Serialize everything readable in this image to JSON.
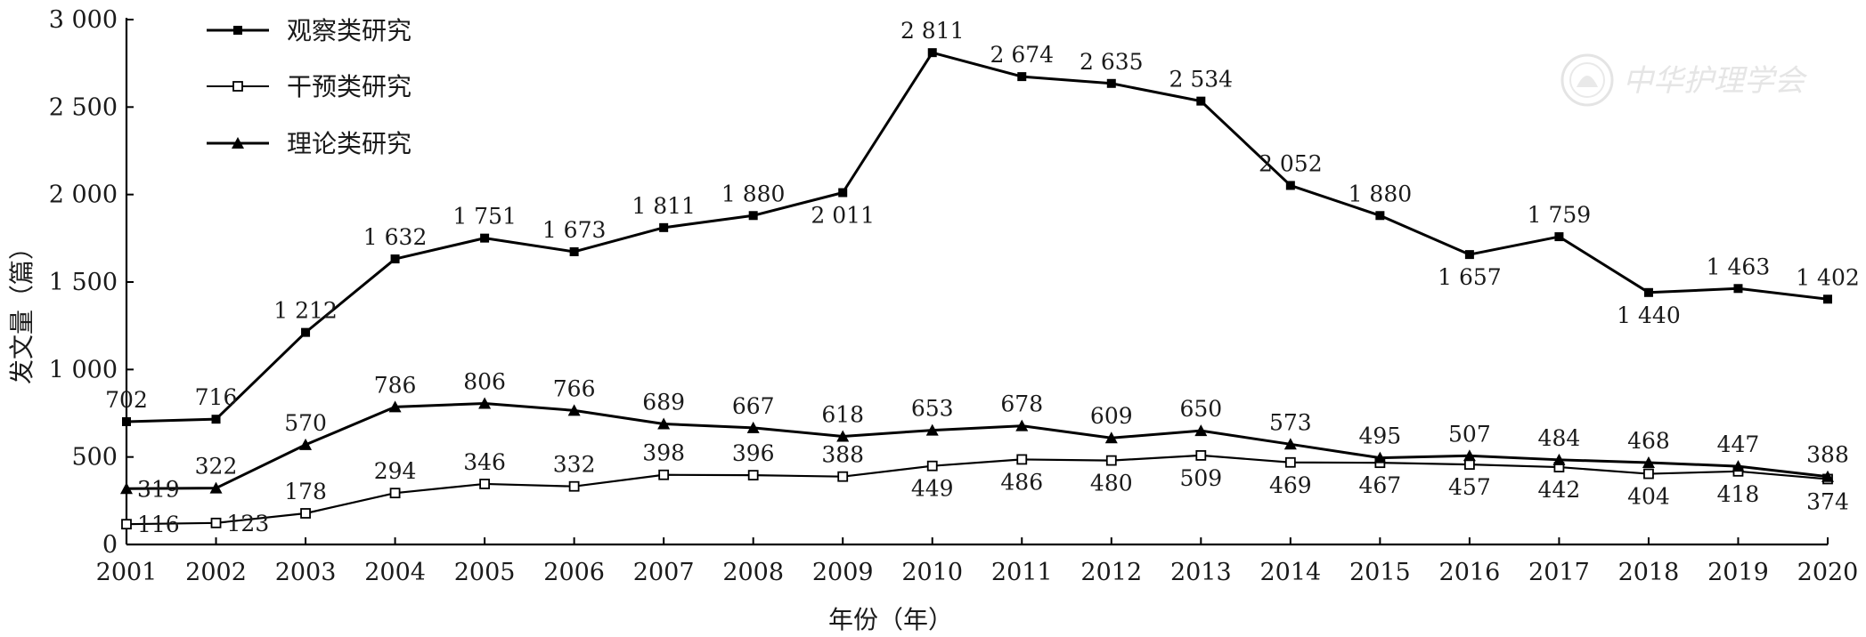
{
  "chart_data": {
    "type": "line",
    "title": "",
    "xlabel": "年份（年）",
    "ylabel": "发文量（篇）",
    "x": [
      "2001",
      "2002",
      "2003",
      "2004",
      "2005",
      "2006",
      "2007",
      "2008",
      "2009",
      "2010",
      "2011",
      "2012",
      "2013",
      "2014",
      "2015",
      "2016",
      "2017",
      "2018",
      "2019",
      "2020"
    ],
    "ylim": [
      0,
      3000
    ],
    "yticks": [
      0,
      500,
      1000,
      1500,
      2000,
      2500,
      3000
    ],
    "ytick_labels": [
      "0",
      "500",
      "1 000",
      "1 500",
      "2 000",
      "2 500",
      "3 000"
    ],
    "grid": false,
    "legend_position": "top-left",
    "series": [
      {
        "name": "观察类研究",
        "marker": "filled-square",
        "values": [
          702,
          716,
          1212,
          1632,
          1751,
          1673,
          1811,
          1880,
          2011,
          2811,
          2674,
          2635,
          2534,
          2052,
          1880,
          1657,
          1759,
          1440,
          1463,
          1402
        ],
        "labels": [
          "702",
          "716",
          "1 212",
          "1 632",
          "1 751",
          "1 673",
          "1 811",
          "1 880",
          "2 011",
          "2 811",
          "2 674",
          "2 635",
          "2 534",
          "2 052",
          "1 880",
          "1 657",
          "1 759",
          "1 440",
          "1 463",
          "1 402"
        ],
        "label_pos": [
          "above",
          "above",
          "above",
          "above",
          "above",
          "above",
          "above",
          "above",
          "below",
          "above",
          "above",
          "above",
          "above",
          "above",
          "above",
          "below",
          "above",
          "below",
          "above",
          "above"
        ]
      },
      {
        "name": "干预类研究",
        "marker": "hollow-square",
        "values": [
          116,
          123,
          178,
          294,
          346,
          332,
          398,
          396,
          388,
          449,
          486,
          480,
          509,
          469,
          467,
          457,
          442,
          404,
          418,
          374
        ],
        "labels": [
          "116",
          "123",
          "178",
          "294",
          "346",
          "332",
          "398",
          "396",
          "388",
          "449",
          "486",
          "480",
          "509",
          "469",
          "467",
          "457",
          "442",
          "404",
          "418",
          "374"
        ],
        "label_pos": [
          "right",
          "right",
          "above",
          "above",
          "above",
          "above",
          "above",
          "above",
          "above",
          "below",
          "below",
          "below",
          "below",
          "below",
          "below",
          "below",
          "below",
          "below",
          "below",
          "below"
        ]
      },
      {
        "name": "理论类研究",
        "marker": "filled-triangle",
        "values": [
          319,
          322,
          570,
          786,
          806,
          766,
          689,
          667,
          618,
          653,
          678,
          609,
          650,
          573,
          495,
          507,
          484,
          468,
          447,
          388
        ],
        "labels": [
          "319",
          "322",
          "570",
          "786",
          "806",
          "766",
          "689",
          "667",
          "618",
          "653",
          "678",
          "609",
          "650",
          "573",
          "495",
          "507",
          "484",
          "468",
          "447",
          "388"
        ],
        "label_pos": [
          "right",
          "above",
          "above",
          "above",
          "above",
          "above",
          "above",
          "above",
          "above",
          "above",
          "above",
          "above",
          "above",
          "above",
          "above",
          "above",
          "above",
          "above",
          "above",
          "above"
        ]
      }
    ]
  },
  "watermark": {
    "text": "中华护理学会",
    "color": "#cccccc"
  }
}
